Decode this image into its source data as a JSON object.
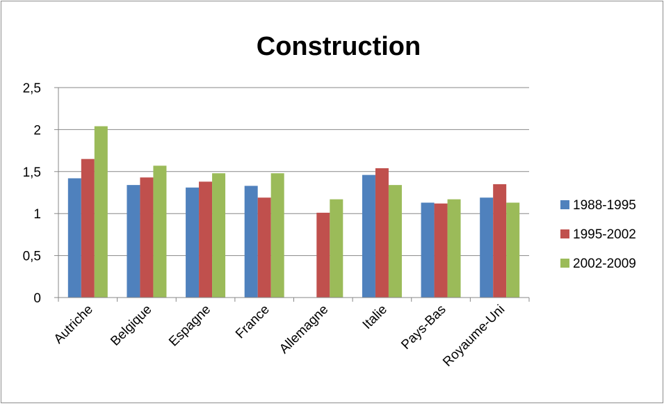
{
  "chart_data": {
    "type": "bar",
    "title": "Construction",
    "xlabel": "",
    "ylabel": "",
    "categories": [
      "Autriche",
      "Belgique",
      "Espagne",
      "France",
      "Allemagne",
      "Italie",
      "Pays-Bas",
      "Royaume-Uni"
    ],
    "series": [
      {
        "name": "1988-1995",
        "color": "#4f81bd",
        "values": [
          1.42,
          1.34,
          1.31,
          1.33,
          null,
          1.46,
          1.13,
          1.19
        ]
      },
      {
        "name": "1995-2002",
        "color": "#c0504d",
        "values": [
          1.65,
          1.43,
          1.38,
          1.19,
          1.01,
          1.54,
          1.12,
          1.35
        ]
      },
      {
        "name": "2002-2009",
        "color": "#9bbb59",
        "values": [
          2.04,
          1.57,
          1.48,
          1.48,
          1.17,
          1.34,
          1.17,
          1.13
        ]
      }
    ],
    "ylim": [
      0,
      2.5
    ],
    "yticks": [
      "0",
      "0,5",
      "1",
      "1,5",
      "2",
      "2,5"
    ],
    "ytick_values": [
      0,
      0.5,
      1,
      1.5,
      2,
      2.5
    ],
    "grid": true,
    "legend_position": "right"
  }
}
